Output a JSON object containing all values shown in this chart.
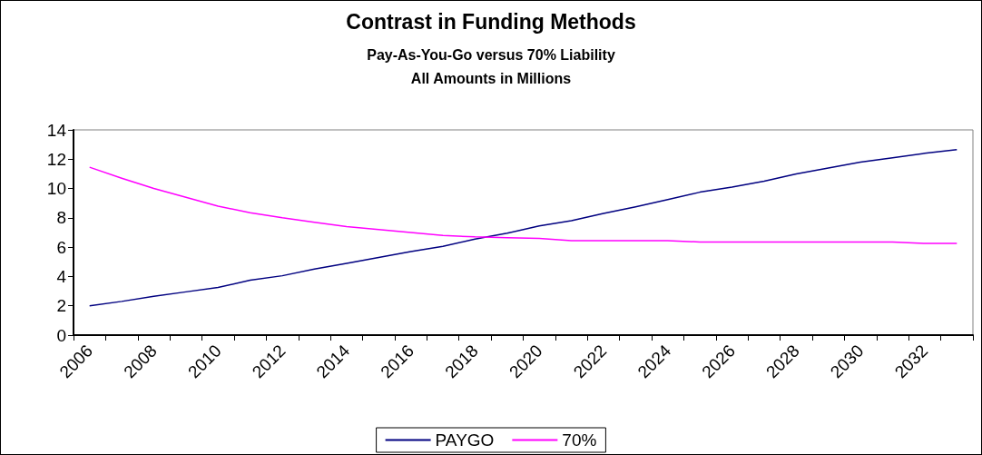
{
  "chart_data": {
    "type": "line",
    "title": "Contrast in Funding Methods",
    "subtitle": "Pay-As-You-Go versus 70% Liability\nAll Amounts in Millions",
    "categories": [
      "2006",
      null,
      "2008",
      null,
      "2010",
      null,
      "2012",
      null,
      "2014",
      null,
      "2016",
      null,
      "2018",
      null,
      "2020",
      null,
      "2022",
      null,
      "2024",
      null,
      "2026",
      null,
      "2028",
      null,
      "2030",
      null,
      "2032",
      null
    ],
    "series": [
      {
        "name": "PAYGO",
        "color": "#000080",
        "values": [
          2.0,
          2.3,
          2.65,
          2.95,
          3.25,
          3.75,
          4.05,
          4.5,
          4.9,
          5.3,
          5.7,
          6.05,
          6.55,
          6.95,
          7.45,
          7.8,
          8.3,
          8.75,
          9.25,
          9.75,
          10.1,
          10.5,
          11.0,
          11.4,
          11.8,
          12.1,
          12.4,
          12.65
        ]
      },
      {
        "name": "70%",
        "color": "#ff00ff",
        "values": [
          11.45,
          10.7,
          10.0,
          9.4,
          8.8,
          8.35,
          8.0,
          7.7,
          7.4,
          7.2,
          7.0,
          6.8,
          6.7,
          6.65,
          6.6,
          6.45,
          6.45,
          6.45,
          6.45,
          6.35,
          6.35,
          6.35,
          6.35,
          6.35,
          6.35,
          6.35,
          6.25,
          6.25
        ]
      }
    ],
    "ylim": [
      0,
      14
    ],
    "yticks": [
      0,
      2,
      4,
      6,
      8,
      10,
      12,
      14
    ],
    "grid": false,
    "legend": "bottom",
    "marker": "none",
    "line_style": "solid"
  }
}
